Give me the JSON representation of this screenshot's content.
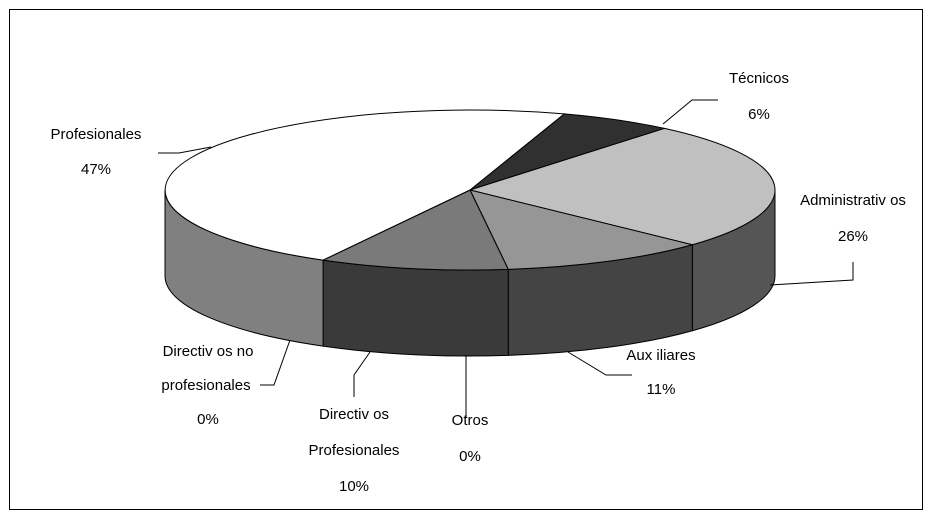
{
  "chart_data": {
    "type": "pie",
    "style": "3d-exploded-none",
    "title": "",
    "slices": [
      {
        "label": "Técnicos",
        "value": 6,
        "value_label": "6%",
        "color": "#303030"
      },
      {
        "label": "Administrativos",
        "value": 26,
        "value_label": "26%",
        "color": "#c0c0c0"
      },
      {
        "label": "Auxiliares",
        "value": 11,
        "value_label": "11%",
        "color": "#969696"
      },
      {
        "label": "Otros",
        "value": 0,
        "value_label": "0%",
        "color": "#7a7a7a"
      },
      {
        "label": "Directivos Profesionales",
        "value": 10,
        "value_label": "10%",
        "color": "#7a7a7a"
      },
      {
        "label": "Directivos no profesionales",
        "value": 0,
        "value_label": "0%",
        "color": "#555555"
      },
      {
        "label": "Profesionales",
        "value": 47,
        "value_label": "47%",
        "color": "#ffffff"
      }
    ],
    "side_colors": [
      "#555555",
      "#444444",
      "#3a3a3a",
      "#808080"
    ],
    "label_text": {
      "tecnicos": "Técnicos",
      "administrativos": "Administrativ os",
      "auxiliares": "Aux iliares",
      "otros": "Otros",
      "directivos_prof_1": "Directiv os",
      "directivos_prof_2": "Profesionales",
      "directivos_noprof_1": "Directiv os no",
      "directivos_noprof_2": "profesionales",
      "profesionales": "Profesionales"
    },
    "legend": "none",
    "grid": false
  }
}
